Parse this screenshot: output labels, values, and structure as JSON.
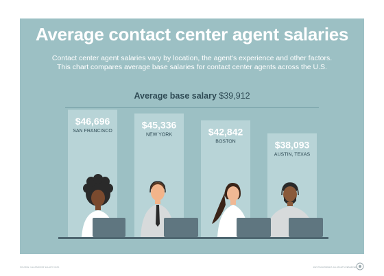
{
  "title": "Average contact center agent salaries",
  "subtitle_line1": "Contact center agent salaries vary by location, the agent's experience and other factors.",
  "subtitle_line2": "This chart compares average base salaries for contact center agents across the U.S.",
  "average": {
    "label": "Average base salary",
    "value_text": "$39,912",
    "value": 39912
  },
  "chart_data": {
    "type": "bar",
    "title": "Average contact center agent salaries",
    "categories": [
      "SAN FRANCISCO",
      "NEW YORK",
      "BOSTON",
      "AUSTIN, TEXAS"
    ],
    "values": [
      46696,
      45336,
      42842,
      38093
    ],
    "value_labels": [
      "$46,696",
      "$45,336",
      "$42,842",
      "$38,093"
    ],
    "reference_line": {
      "label": "Average base salary",
      "value": 39912
    },
    "colors": {
      "bar": "#b8d4d7",
      "background": "#9cc0c4",
      "text_dark": "#2f4b55"
    }
  },
  "footer": {
    "left": "SOURCE: GLASSDOOR SALARY DATA",
    "right": "2023 TECHTARGET. ALL RIGHTS RESERVED"
  },
  "icons": [
    "techtarget-logo"
  ]
}
